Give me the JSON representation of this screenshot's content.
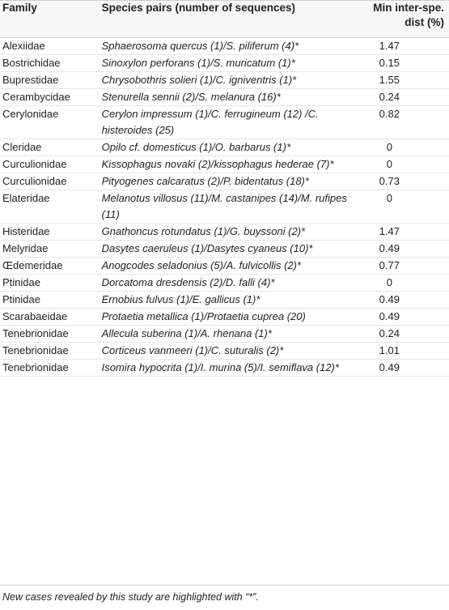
{
  "table": {
    "headers": {
      "family": "Family",
      "species": "Species pairs (number of sequences)",
      "distance": "Min inter-spe. dist (%)"
    },
    "rows": [
      {
        "family": "Alexiidae",
        "species": "Sphaerosoma quercus (1)/S. piliferum (4)*",
        "distance": "1.47"
      },
      {
        "family": "Bostrichidae",
        "species": "Sinoxylon perforans (1)/S. muricatum (1)*",
        "distance": "0.15"
      },
      {
        "family": "Buprestidae",
        "species": "Chrysobothris solieri (1)/C. igniventris (1)*",
        "distance": "1.55"
      },
      {
        "family": "Cerambycidae",
        "species": "Stenurella sennii (2)/S. melanura (16)*",
        "distance": "0.24"
      },
      {
        "family": "Cerylonidae",
        "species": "Cerylon impressum (1)/C. ferrugineum (12) /C. histeroides (25)",
        "distance": "0.82"
      },
      {
        "family": "Cleridae",
        "species": "Opilo cf. domesticus (1)/O. barbarus (1)*",
        "distance": "0"
      },
      {
        "family": "Curculionidae",
        "species": "Kissophagus novaki (2)/kissophagus hederae (7)*",
        "distance": "0"
      },
      {
        "family": "Curculionidae",
        "species": "Pityogenes calcaratus (2)/P. bidentatus (18)*",
        "distance": "0.73"
      },
      {
        "family": "Elateridae",
        "species": "Melanotus villosus (11)/M. castanipes (14)/M. rufipes (11)",
        "distance": "0"
      },
      {
        "family": "Histeridae",
        "species": "Gnathoncus rotundatus (1)/G. buyssoni (2)*",
        "distance": "1.47"
      },
      {
        "family": "Melyridae",
        "species": "Dasytes caeruleus (1)/Dasytes cyaneus (10)*",
        "distance": "0.49"
      },
      {
        "family": "Œdemeridae",
        "species": "Anogcodes seladonius (5)/A. fulvicollis (2)*",
        "distance": "0.77"
      },
      {
        "family": "Ptinidae",
        "species": "Dorcatoma dresdensis (2)/D. falli (4)*",
        "distance": "0"
      },
      {
        "family": "Ptinidae",
        "species": "Ernobius fulvus (1)/E. gallicus (1)*",
        "distance": "0.49"
      },
      {
        "family": "Scarabaeidae",
        "species": "Protaetia metallica (1)/Protaetia cuprea (20)",
        "distance": "0.49"
      },
      {
        "family": "Tenebrionidae",
        "species": "Allecula suberina (1)/A. rhenana (1)*",
        "distance": "0.24"
      },
      {
        "family": "Tenebrionidae",
        "species": "Corticeus vanmeeri (1)/C. suturalis (2)*",
        "distance": "1.01"
      },
      {
        "family": "Tenebrionidae",
        "species": "Isomira hypocrita (1)/I. murina (5)/I. semiflava (12)*",
        "distance": "0.49"
      }
    ],
    "footnote": "New cases revealed by this study are highlighted with “*”."
  }
}
